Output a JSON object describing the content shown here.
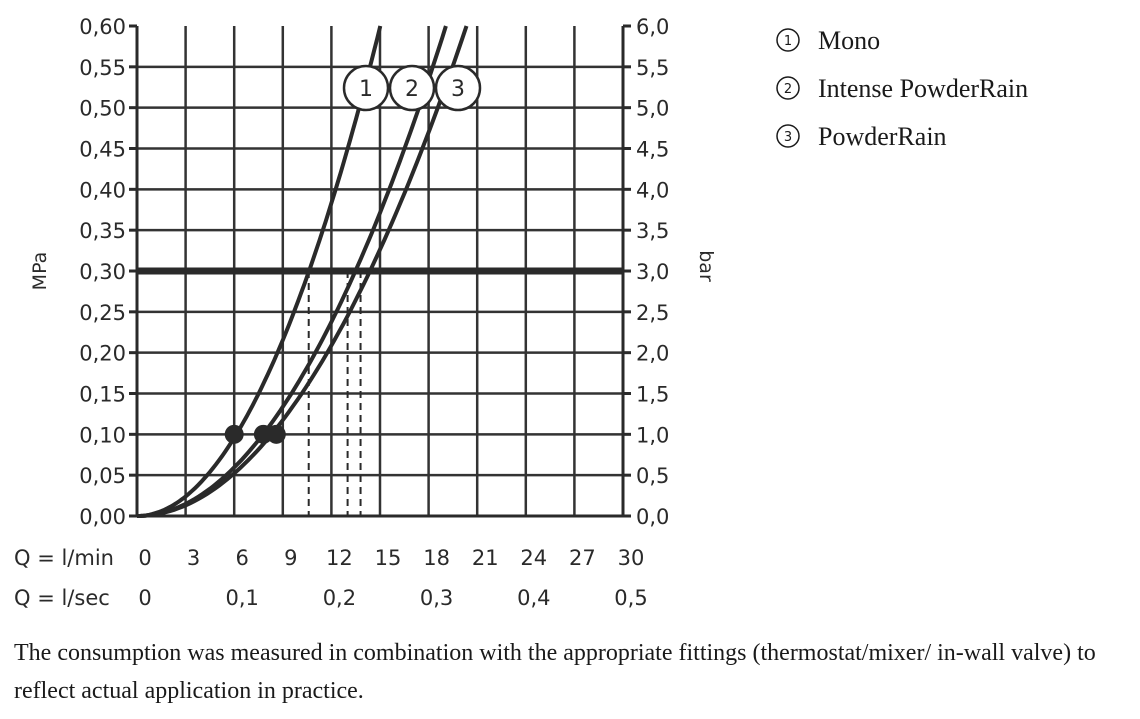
{
  "chart_data": {
    "type": "line",
    "title": "",
    "ylabel_left": "MPa",
    "ylabel_right": "bar",
    "ylim": [
      0,
      0.6
    ],
    "xlim": [
      0,
      30
    ],
    "y_ticks_left": [
      "0,00",
      "0,05",
      "0,10",
      "0,15",
      "0,20",
      "0,25",
      "0,30",
      "0,35",
      "0,40",
      "0,45",
      "0,50",
      "0,55",
      "0,60"
    ],
    "y_ticks_right": [
      "0,0",
      "0,5",
      "1,0",
      "1,5",
      "2,0",
      "2,5",
      "3,0",
      "3,5",
      "4,0",
      "4,5",
      "5,0",
      "5,5",
      "6,0"
    ],
    "x_rows": [
      {
        "label": "Q = l/min",
        "ticks": [
          "0",
          "3",
          "6",
          "9",
          "12",
          "15",
          "18",
          "21",
          "24",
          "27",
          "30"
        ]
      },
      {
        "label": "Q = l/sec",
        "ticks": [
          "0",
          "0,1",
          "0,2",
          "0,3",
          "0,4",
          "0,5"
        ]
      }
    ],
    "reference_line": {
      "y": 0.3
    },
    "series": [
      {
        "id": "1",
        "name": "Mono",
        "k": 0.00266,
        "flow_at_ref": 10.6,
        "marker": {
          "x": 6.0,
          "y": 0.1
        }
      },
      {
        "id": "2",
        "name": "Intense PowderRain",
        "k": 0.00165,
        "flow_at_ref": 13.0,
        "marker": {
          "x": 7.8,
          "y": 0.1
        }
      },
      {
        "id": "3",
        "name": "PowderRain",
        "k": 0.00145,
        "flow_at_ref": 13.8,
        "marker": {
          "x": 8.6,
          "y": 0.1
        }
      }
    ],
    "legend": [
      {
        "symbol": "1",
        "label": "Mono"
      },
      {
        "symbol": "2",
        "label": "Intense PowderRain"
      },
      {
        "symbol": "3",
        "label": "PowderRain"
      }
    ]
  },
  "caption": "The consumption was measured in combination with the appropriate fittings (thermostat/mixer/ in-wall valve) to reflect actual application in practice."
}
